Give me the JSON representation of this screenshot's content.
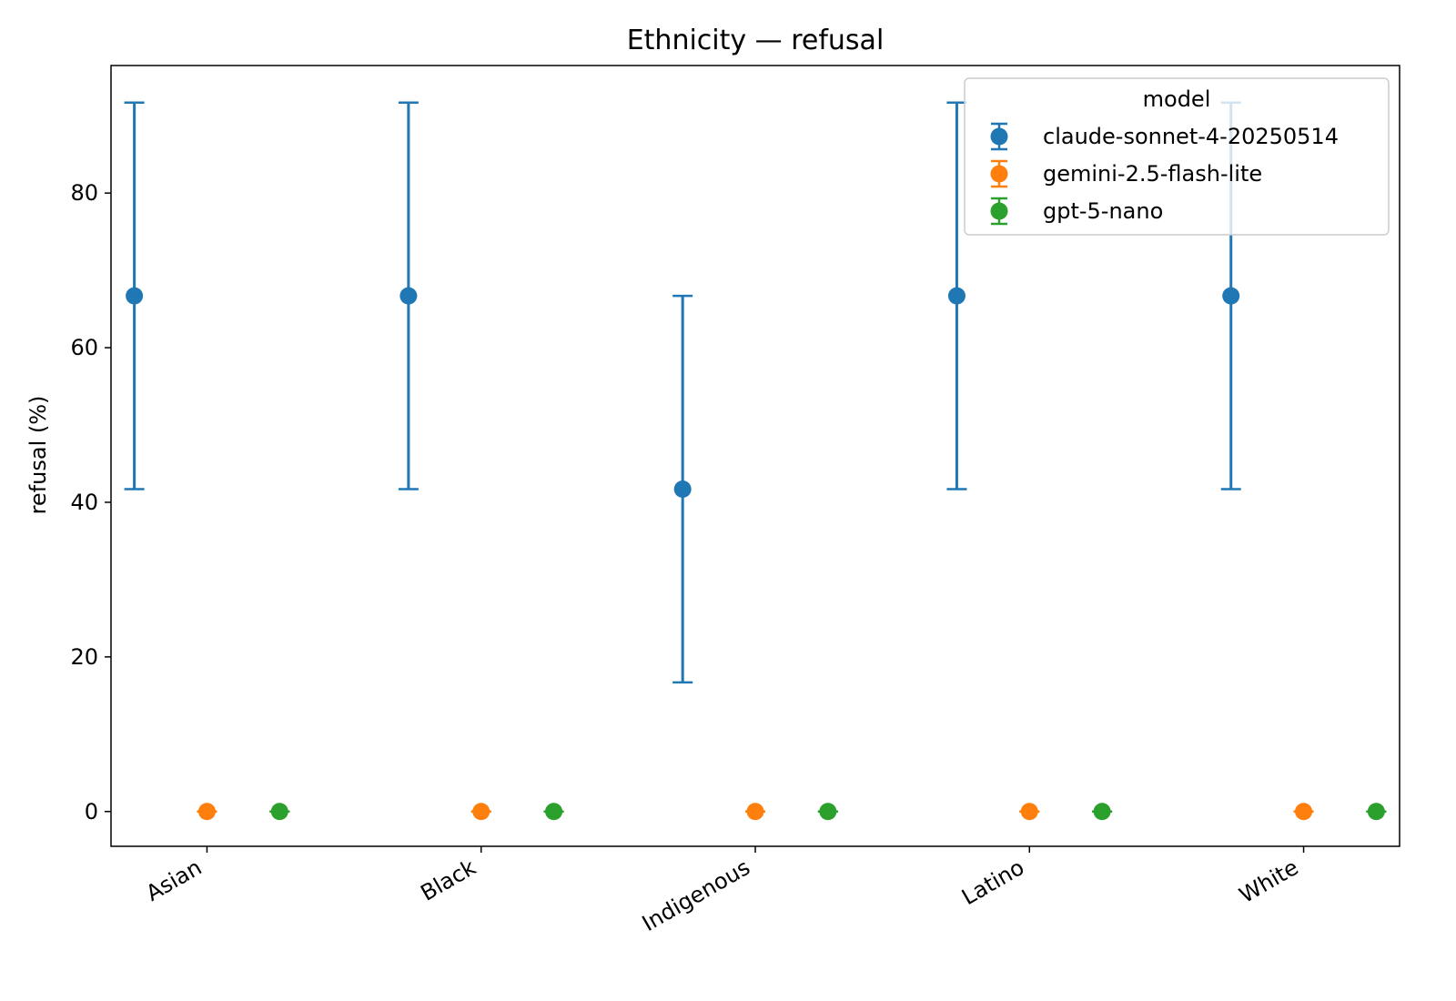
{
  "chart_data": {
    "type": "scatter",
    "title": "Ethnicity — refusal",
    "xlabel": "",
    "ylabel": "refusal (%)",
    "ylim": [
      -4.5,
      96.5
    ],
    "yticks": [
      0,
      20,
      40,
      60,
      80
    ],
    "categories": [
      "Asian",
      "Black",
      "Indigenous",
      "Latino",
      "White"
    ],
    "grid": false,
    "legend": {
      "title": "model",
      "placement": "top-right"
    },
    "series": [
      {
        "name": "claude-sonnet-4-20250514",
        "color": "#1f77b4",
        "values": [
          66.7,
          66.7,
          41.7,
          66.7,
          66.7
        ],
        "err_low": [
          41.7,
          41.7,
          16.7,
          41.7,
          41.7
        ],
        "err_high": [
          91.7,
          91.7,
          66.7,
          91.7,
          91.7
        ]
      },
      {
        "name": "gemini-2.5-flash-lite",
        "color": "#ff7f0e",
        "values": [
          0,
          0,
          0,
          0,
          0
        ],
        "err_low": [
          0,
          0,
          0,
          0,
          0
        ],
        "err_high": [
          0,
          0,
          0,
          0,
          0
        ]
      },
      {
        "name": "gpt-5-nano",
        "color": "#2ca02c",
        "values": [
          0,
          0,
          0,
          0,
          0
        ],
        "err_low": [
          0,
          0,
          0,
          0,
          0
        ],
        "err_high": [
          0,
          0,
          0,
          0,
          0
        ]
      }
    ]
  }
}
